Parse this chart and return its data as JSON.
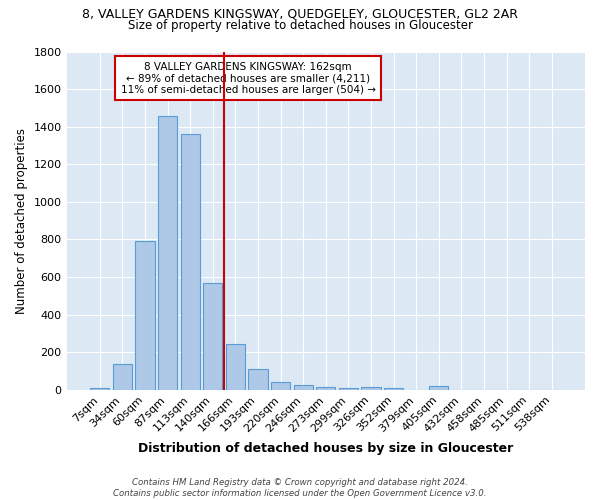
{
  "title1": "8, VALLEY GARDENS KINGSWAY, QUEDGELEY, GLOUCESTER, GL2 2AR",
  "title2": "Size of property relative to detached houses in Gloucester",
  "xlabel": "Distribution of detached houses by size in Gloucester",
  "ylabel": "Number of detached properties",
  "bar_labels": [
    "7sqm",
    "34sqm",
    "60sqm",
    "87sqm",
    "113sqm",
    "140sqm",
    "166sqm",
    "193sqm",
    "220sqm",
    "246sqm",
    "273sqm",
    "299sqm",
    "326sqm",
    "352sqm",
    "379sqm",
    "405sqm",
    "432sqm",
    "458sqm",
    "485sqm",
    "511sqm",
    "538sqm"
  ],
  "bar_values": [
    10,
    135,
    790,
    1455,
    1360,
    570,
    245,
    110,
    40,
    25,
    15,
    10,
    15,
    10,
    0,
    20,
    0,
    0,
    0,
    0,
    0
  ],
  "bar_color": "#aec8e8",
  "bar_edge_color": "#5b9bd5",
  "background_color": "#dce9f5",
  "grid_color": "#ffffff",
  "vline_color": "#cc0000",
  "ylim": [
    0,
    1800
  ],
  "yticks": [
    0,
    200,
    400,
    600,
    800,
    1000,
    1200,
    1400,
    1600,
    1800
  ],
  "annotation_title": "8 VALLEY GARDENS KINGSWAY: 162sqm",
  "annotation_line1": "← 89% of detached houses are smaller (4,211)",
  "annotation_line2": "11% of semi-detached houses are larger (504) →",
  "footer1": "Contains HM Land Registry data © Crown copyright and database right 2024.",
  "footer2": "Contains public sector information licensed under the Open Government Licence v3.0."
}
